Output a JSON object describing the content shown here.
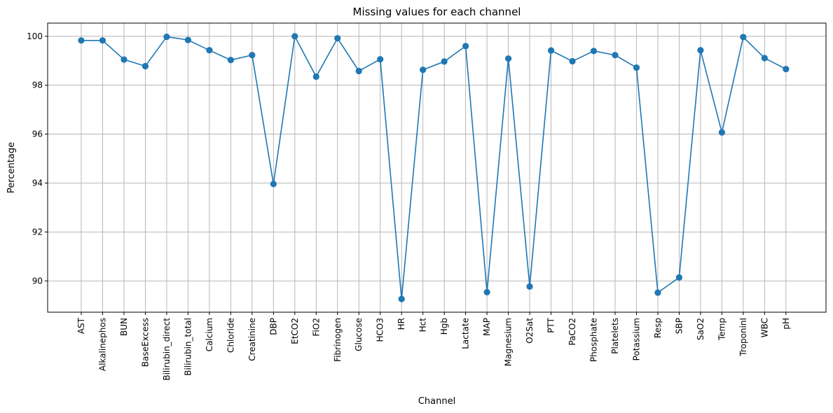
{
  "chart_data": {
    "type": "line",
    "title": "Missing values for each channel",
    "xlabel": "Channel",
    "ylabel": "Percentage",
    "categories": [
      "AST",
      "Alkalinephos",
      "BUN",
      "BaseExcess",
      "Bilirubin_direct",
      "Bilirubin_total",
      "Calcium",
      "Chloride",
      "Creatinine",
      "DBP",
      "EtCO2",
      "FiO2",
      "Fibrinogen",
      "Glucose",
      "HCO3",
      "HR",
      "Hct",
      "Hgb",
      "Lactate",
      "MAP",
      "Magnesium",
      "O2Sat",
      "PTT",
      "PaCO2",
      "Phosphate",
      "Platelets",
      "Potassium",
      "Resp",
      "SBP",
      "SaO2",
      "Temp",
      "TroponinI",
      "WBC",
      "pH"
    ],
    "values": [
      99.83,
      99.83,
      99.05,
      98.78,
      99.98,
      99.85,
      99.43,
      99.03,
      99.23,
      93.96,
      100.0,
      98.35,
      99.92,
      98.58,
      99.06,
      89.26,
      98.63,
      98.97,
      99.6,
      89.54,
      99.09,
      89.77,
      99.42,
      98.98,
      99.4,
      99.23,
      98.72,
      89.52,
      90.14,
      99.43,
      96.07,
      99.97,
      99.11,
      98.66
    ],
    "yticks": [
      90,
      92,
      94,
      96,
      98,
      100
    ],
    "ylim": [
      88.72,
      100.54
    ],
    "grid": true,
    "color": "#1f77b4"
  }
}
